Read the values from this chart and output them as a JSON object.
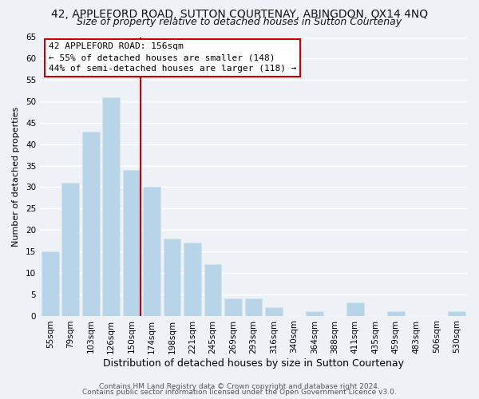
{
  "title": "42, APPLEFORD ROAD, SUTTON COURTENAY, ABINGDON, OX14 4NQ",
  "subtitle": "Size of property relative to detached houses in Sutton Courtenay",
  "xlabel": "Distribution of detached houses by size in Sutton Courtenay",
  "ylabel": "Number of detached properties",
  "bar_labels": [
    "55sqm",
    "79sqm",
    "103sqm",
    "126sqm",
    "150sqm",
    "174sqm",
    "198sqm",
    "221sqm",
    "245sqm",
    "269sqm",
    "293sqm",
    "316sqm",
    "340sqm",
    "364sqm",
    "388sqm",
    "411sqm",
    "435sqm",
    "459sqm",
    "483sqm",
    "506sqm",
    "530sqm"
  ],
  "bar_values": [
    15,
    31,
    43,
    51,
    34,
    30,
    18,
    17,
    12,
    4,
    4,
    2,
    0,
    1,
    0,
    3,
    0,
    1,
    0,
    0,
    1
  ],
  "bar_color": "#b8d4e8",
  "bar_edge_color": "#d0e4f0",
  "highlight_bar_index": 4,
  "highlight_line_color": "#cc0000",
  "ylim": [
    0,
    65
  ],
  "yticks": [
    0,
    5,
    10,
    15,
    20,
    25,
    30,
    35,
    40,
    45,
    50,
    55,
    60,
    65
  ],
  "annotation_title": "42 APPLEFORD ROAD: 156sqm",
  "annotation_line1": "← 55% of detached houses are smaller (148)",
  "annotation_line2": "44% of semi-detached houses are larger (118) →",
  "annotation_box_color": "#ffffff",
  "annotation_box_edge": "#cc0000",
  "footer1": "Contains HM Land Registry data © Crown copyright and database right 2024.",
  "footer2": "Contains public sector information licensed under the Open Government Licence v3.0.",
  "background_color": "#eef2f7",
  "grid_color": "#ffffff",
  "title_fontsize": 10,
  "subtitle_fontsize": 9,
  "xlabel_fontsize": 9,
  "ylabel_fontsize": 8,
  "tick_fontsize": 7.5,
  "footer_fontsize": 6.5,
  "annotation_fontsize": 8
}
